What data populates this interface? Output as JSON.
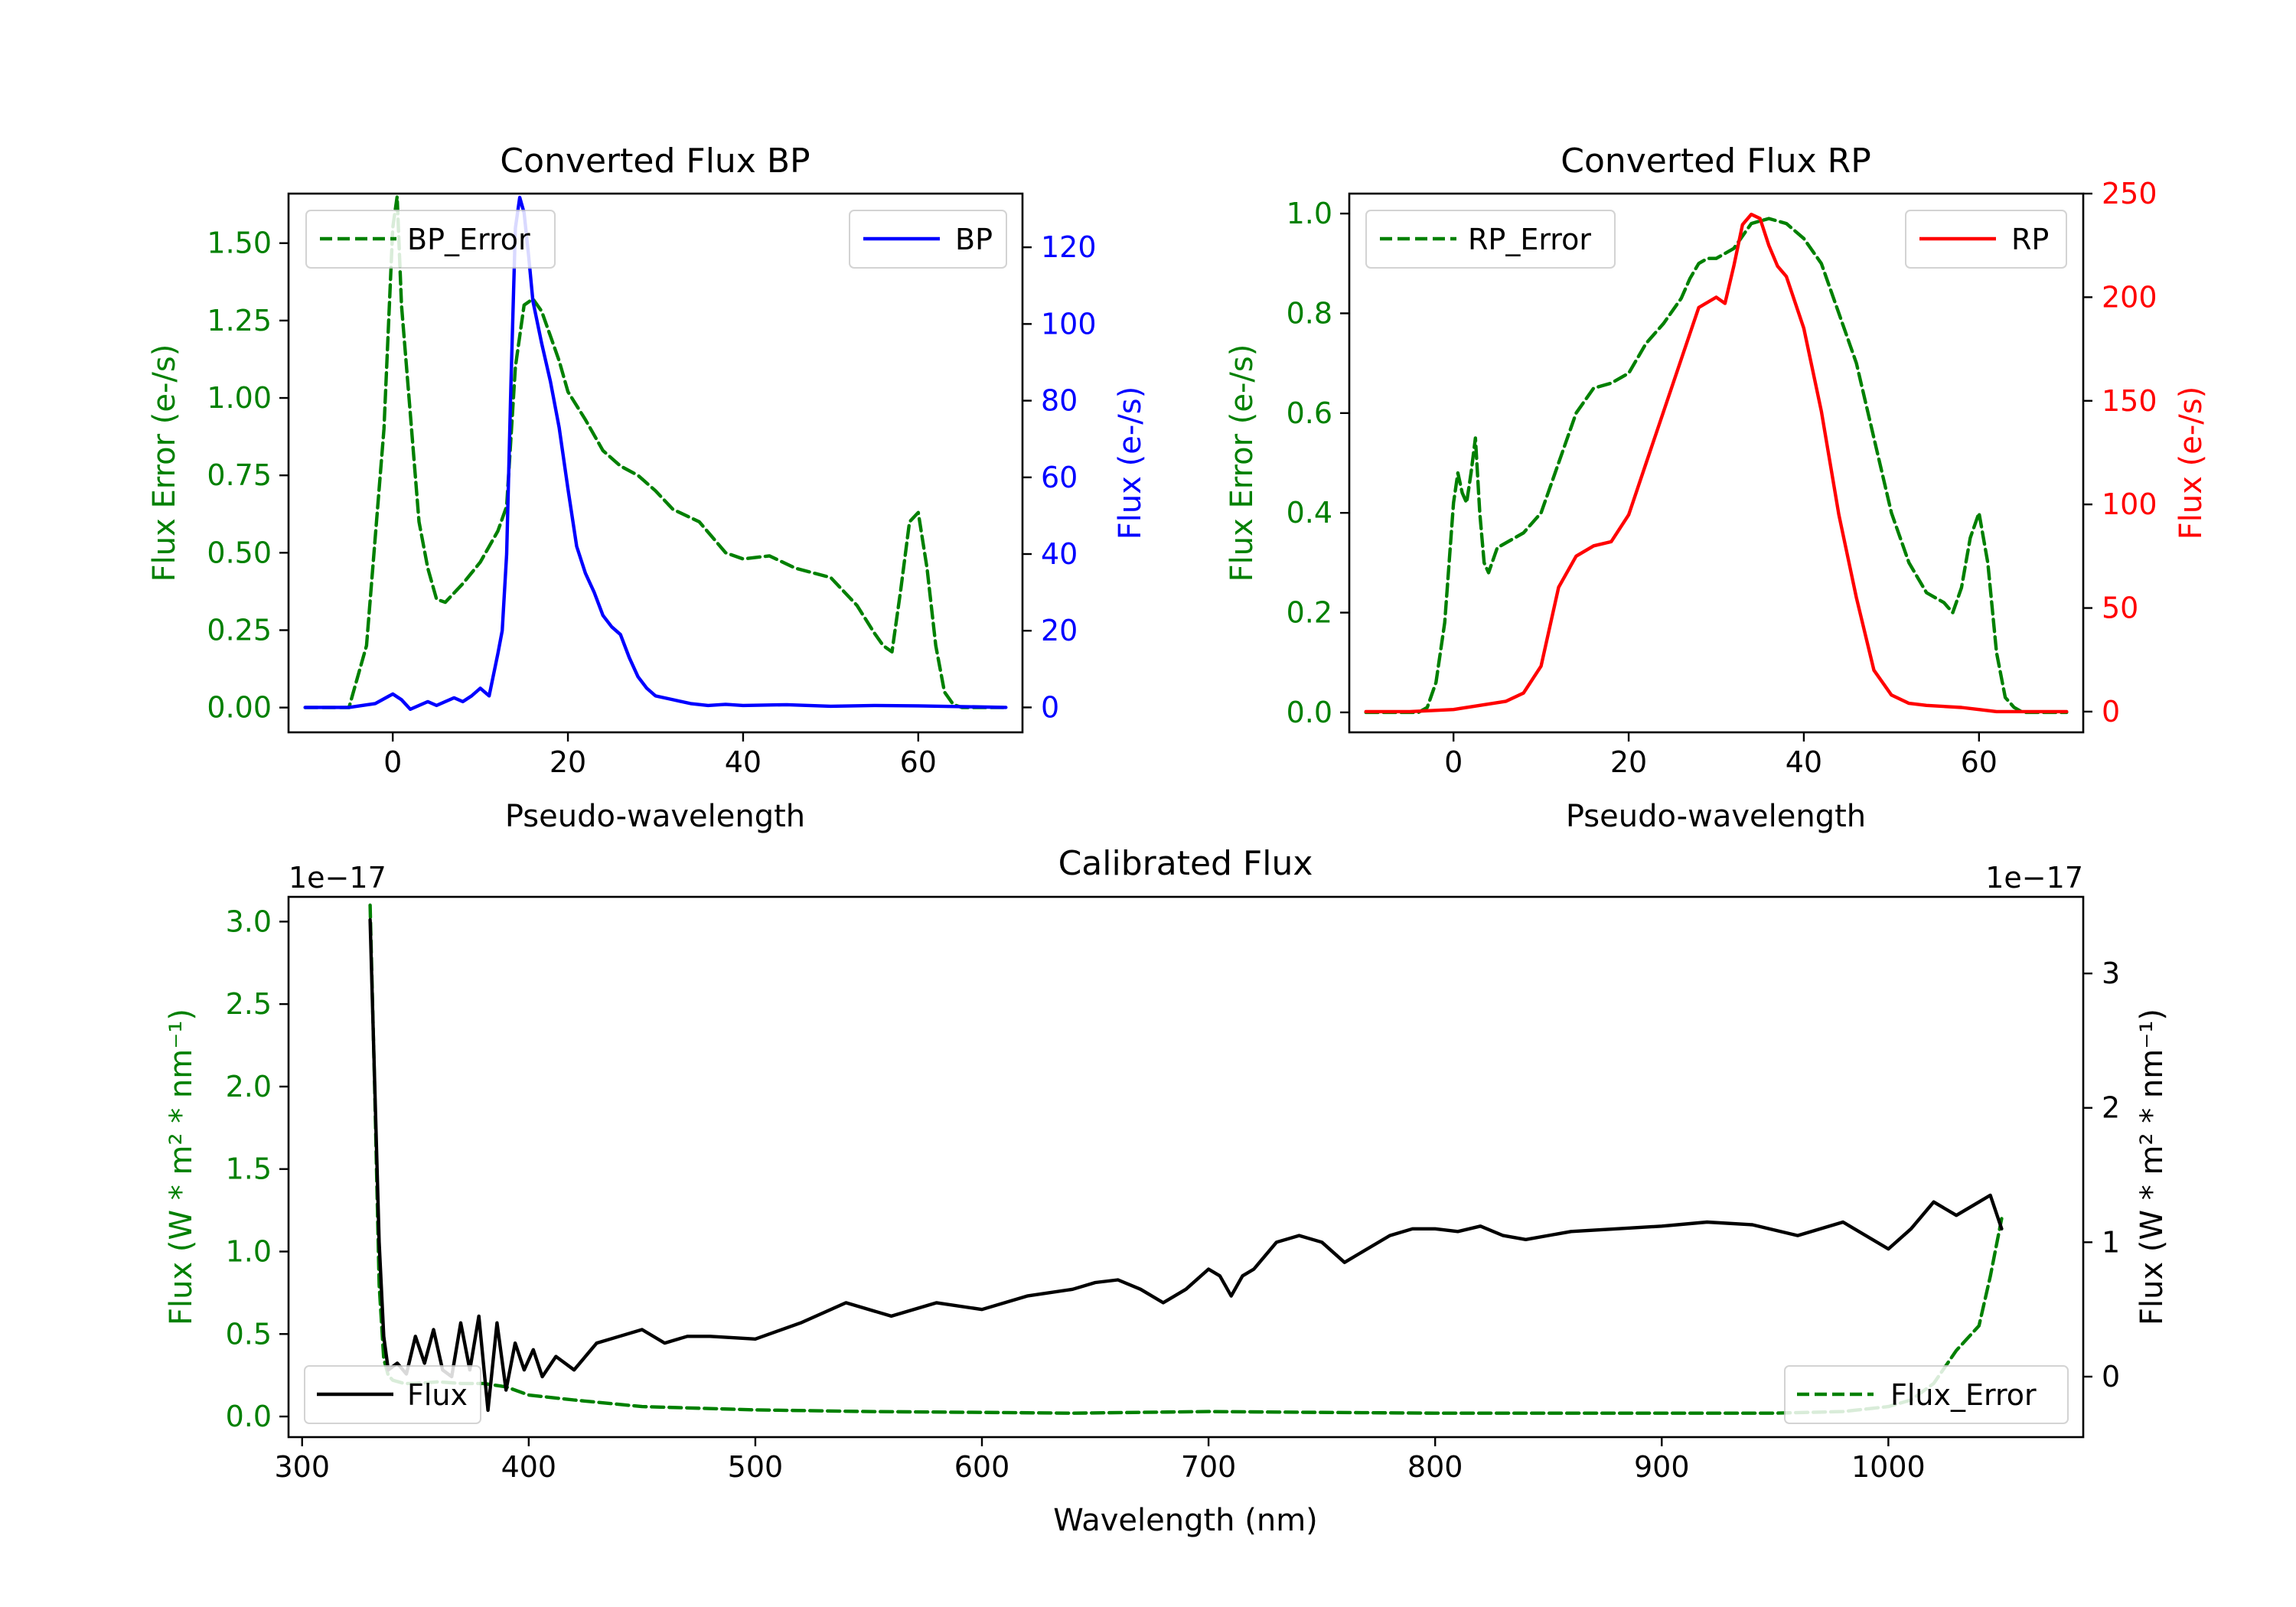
{
  "colors": {
    "green": "#008000",
    "blue": "#0000ff",
    "red": "#ff0000",
    "black": "#000000"
  },
  "chart_data": [
    {
      "id": "bp",
      "type": "line",
      "title": "Converted Flux BP",
      "xlabel": "Pseudo-wavelength",
      "ylabel_left": "Flux Error (e-/s)",
      "ylabel_right": "Flux (e-/s)",
      "xlim": [
        -11.9,
        71.9
      ],
      "ylim_left": [
        -0.08,
        1.66
      ],
      "ylim_right": [
        -6.5,
        134
      ],
      "xticks": [
        0,
        20,
        40,
        60
      ],
      "yticks_left": [
        0.0,
        0.25,
        0.5,
        0.75,
        1.0,
        1.25,
        1.5
      ],
      "ytick_labels_left": [
        "0.00",
        "0.25",
        "0.50",
        "0.75",
        "1.00",
        "1.25",
        "1.50"
      ],
      "yticks_right": [
        0,
        20,
        40,
        60,
        80,
        100,
        120
      ],
      "legend_left": "BP_Error",
      "legend_right": "BP",
      "series": [
        {
          "name": "BP_Error",
          "axis": "left",
          "color": "#008000",
          "dash": true,
          "x": [
            -10,
            -5,
            -3,
            -1,
            0,
            0.5,
            1,
            2,
            3,
            4,
            5,
            6,
            7,
            8,
            10,
            12,
            13,
            14,
            15,
            16,
            17,
            18,
            19,
            20,
            22,
            24,
            26,
            28,
            30,
            32,
            35,
            38,
            40,
            43,
            46,
            50,
            53,
            55,
            56,
            57,
            58,
            59,
            60,
            61,
            62,
            63,
            64,
            65,
            66,
            67,
            70
          ],
          "y": [
            0.0,
            0.0,
            0.2,
            0.9,
            1.55,
            1.65,
            1.3,
            0.95,
            0.6,
            0.45,
            0.35,
            0.34,
            0.37,
            0.4,
            0.47,
            0.57,
            0.65,
            1.1,
            1.3,
            1.32,
            1.28,
            1.2,
            1.12,
            1.02,
            0.93,
            0.83,
            0.78,
            0.75,
            0.7,
            0.64,
            0.6,
            0.5,
            0.48,
            0.49,
            0.45,
            0.42,
            0.33,
            0.24,
            0.2,
            0.18,
            0.38,
            0.6,
            0.63,
            0.45,
            0.2,
            0.05,
            0.01,
            0.0,
            0.0,
            0.0,
            0.0
          ]
        },
        {
          "name": "BP",
          "axis": "right",
          "color": "#0000ff",
          "dash": false,
          "x": [
            -10,
            -5,
            -2,
            0,
            1,
            2,
            3,
            4,
            5,
            6,
            7,
            8,
            9,
            10,
            11,
            12,
            12.5,
            13,
            13.5,
            14,
            14.5,
            15,
            15.5,
            16,
            17,
            18,
            19,
            20,
            21,
            22,
            23,
            24,
            25,
            26,
            27,
            28,
            29,
            30,
            31,
            32,
            34,
            36,
            38,
            40,
            45,
            50,
            55,
            60,
            65,
            70
          ],
          "y": [
            0,
            0,
            1,
            3.5,
            2,
            -0.5,
            0.5,
            1.5,
            0.5,
            1.5,
            2.5,
            1.5,
            3,
            5,
            3,
            14,
            20,
            40,
            85,
            125,
            133,
            129,
            118,
            106,
            95,
            85,
            73,
            57,
            42,
            35,
            30,
            24,
            21,
            19,
            13,
            8,
            5,
            3,
            2.5,
            2,
            1,
            0.5,
            0.8,
            0.5,
            0.7,
            0.3,
            0.5,
            0.4,
            0.2,
            0
          ]
        }
      ]
    },
    {
      "id": "rp",
      "type": "line",
      "title": "Converted Flux RP",
      "xlabel": "Pseudo-wavelength",
      "ylabel_left": "Flux Error (e-/s)",
      "ylabel_right": "Flux (e-/s)",
      "xlim": [
        -11.9,
        71.9
      ],
      "ylim_left": [
        -0.04,
        1.04
      ],
      "ylim_right": [
        -10,
        250
      ],
      "xticks": [
        0,
        20,
        40,
        60
      ],
      "yticks_left": [
        0.0,
        0.2,
        0.4,
        0.6,
        0.8,
        1.0
      ],
      "ytick_labels_left": [
        "0.0",
        "0.2",
        "0.4",
        "0.6",
        "0.8",
        "1.0"
      ],
      "yticks_right": [
        0,
        50,
        100,
        150,
        200,
        250
      ],
      "legend_left": "RP_Error",
      "legend_right": "RP",
      "series": [
        {
          "name": "RP_Error",
          "axis": "left",
          "color": "#008000",
          "dash": true,
          "x": [
            -10,
            -4,
            -3,
            -2,
            -1,
            0,
            0.5,
            1,
            1.5,
            2,
            2.5,
            3,
            3.5,
            4,
            5,
            6,
            7,
            8,
            10,
            12,
            14,
            16,
            18,
            20,
            22,
            24,
            26,
            27,
            28,
            29,
            30,
            32,
            34,
            36,
            38,
            40,
            42,
            44,
            46,
            48,
            50,
            52,
            54,
            56,
            57,
            58,
            59,
            60,
            61,
            62,
            63,
            64,
            65,
            70
          ],
          "y": [
            0.0,
            0.0,
            0.01,
            0.06,
            0.18,
            0.42,
            0.48,
            0.44,
            0.42,
            0.48,
            0.55,
            0.4,
            0.3,
            0.28,
            0.33,
            0.34,
            0.35,
            0.36,
            0.4,
            0.5,
            0.6,
            0.65,
            0.66,
            0.68,
            0.74,
            0.78,
            0.83,
            0.87,
            0.9,
            0.91,
            0.91,
            0.93,
            0.98,
            0.99,
            0.98,
            0.95,
            0.9,
            0.8,
            0.7,
            0.55,
            0.4,
            0.3,
            0.24,
            0.22,
            0.2,
            0.25,
            0.35,
            0.4,
            0.3,
            0.12,
            0.03,
            0.01,
            0.0,
            0.0
          ]
        },
        {
          "name": "RP",
          "axis": "right",
          "color": "#ff0000",
          "dash": false,
          "x": [
            -10,
            -5,
            0,
            3,
            6,
            8,
            10,
            12,
            14,
            16,
            18,
            20,
            22,
            24,
            26,
            28,
            30,
            31,
            32,
            33,
            34,
            35,
            36,
            37,
            38,
            40,
            42,
            44,
            46,
            48,
            50,
            52,
            54,
            58,
            60,
            62,
            65,
            70
          ],
          "y": [
            0,
            0,
            1,
            3,
            5,
            9,
            22,
            60,
            75,
            80,
            82,
            95,
            120,
            145,
            170,
            195,
            200,
            197,
            215,
            235,
            240,
            238,
            225,
            215,
            210,
            185,
            145,
            95,
            55,
            20,
            8,
            4,
            3,
            2,
            1,
            0,
            0,
            0
          ]
        }
      ]
    },
    {
      "id": "cal",
      "type": "line",
      "title": "Calibrated Flux",
      "xlabel": "Wavelength (nm)",
      "ylabel_left": "Flux (W * m² * nm⁻¹)",
      "ylabel_right": "Flux (W * m² * nm⁻¹)",
      "offset_left": "1e−17",
      "offset_right": "1e−17",
      "xlim": [
        294,
        1086
      ],
      "ylim_left": [
        -0.125,
        3.15
      ],
      "ylim_right": [
        -0.45,
        3.57
      ],
      "xticks": [
        300,
        400,
        500,
        600,
        700,
        800,
        900,
        1000
      ],
      "yticks_left": [
        0.0,
        0.5,
        1.0,
        1.5,
        2.0,
        2.5,
        3.0
      ],
      "ytick_labels_left": [
        "0.0",
        "0.5",
        "1.0",
        "1.5",
        "2.0",
        "2.5",
        "3.0"
      ],
      "yticks_right": [
        0,
        1,
        2,
        3
      ],
      "legend_left": "Flux",
      "legend_right": "Flux_Error",
      "series": [
        {
          "name": "Flux_Error",
          "axis": "left",
          "color": "#008000",
          "dash": true,
          "x": [
            330,
            332,
            334,
            336,
            338,
            340,
            345,
            350,
            360,
            370,
            380,
            390,
            400,
            420,
            450,
            500,
            550,
            600,
            640,
            700,
            750,
            800,
            850,
            900,
            950,
            980,
            1000,
            1010,
            1020,
            1030,
            1040,
            1045,
            1050
          ],
          "y": [
            3.1,
            2.0,
            0.8,
            0.35,
            0.25,
            0.22,
            0.2,
            0.2,
            0.21,
            0.2,
            0.2,
            0.18,
            0.13,
            0.1,
            0.06,
            0.04,
            0.03,
            0.025,
            0.02,
            0.03,
            0.025,
            0.02,
            0.02,
            0.02,
            0.02,
            0.03,
            0.06,
            0.1,
            0.2,
            0.4,
            0.55,
            0.85,
            1.2
          ]
        },
        {
          "name": "Flux",
          "axis": "right",
          "color": "#000000",
          "dash": false,
          "x": [
            330,
            332,
            334,
            336,
            338,
            342,
            346,
            350,
            354,
            358,
            362,
            366,
            370,
            374,
            378,
            382,
            386,
            390,
            394,
            398,
            402,
            406,
            412,
            420,
            430,
            440,
            450,
            460,
            470,
            480,
            500,
            520,
            540,
            560,
            580,
            600,
            620,
            640,
            650,
            660,
            670,
            680,
            690,
            700,
            705,
            710,
            715,
            720,
            730,
            740,
            750,
            760,
            770,
            780,
            790,
            800,
            810,
            820,
            830,
            840,
            860,
            880,
            900,
            920,
            940,
            960,
            980,
            1000,
            1010,
            1020,
            1030,
            1040,
            1045,
            1050
          ],
          "y": [
            3.4,
            2.2,
            1.0,
            0.3,
            0.05,
            0.1,
            0.02,
            0.3,
            0.1,
            0.35,
            0.05,
            0.0,
            0.4,
            0.05,
            0.45,
            -0.25,
            0.4,
            -0.1,
            0.25,
            0.05,
            0.2,
            0.0,
            0.15,
            0.05,
            0.25,
            0.3,
            0.35,
            0.25,
            0.3,
            0.3,
            0.28,
            0.4,
            0.55,
            0.45,
            0.55,
            0.5,
            0.6,
            0.65,
            0.7,
            0.72,
            0.65,
            0.55,
            0.65,
            0.8,
            0.75,
            0.6,
            0.75,
            0.8,
            1.0,
            1.05,
            1.0,
            0.85,
            0.95,
            1.05,
            1.1,
            1.1,
            1.08,
            1.12,
            1.05,
            1.02,
            1.08,
            1.1,
            1.12,
            1.15,
            1.13,
            1.05,
            1.15,
            0.95,
            1.1,
            1.3,
            1.2,
            1.3,
            1.35,
            1.1
          ]
        }
      ]
    }
  ]
}
